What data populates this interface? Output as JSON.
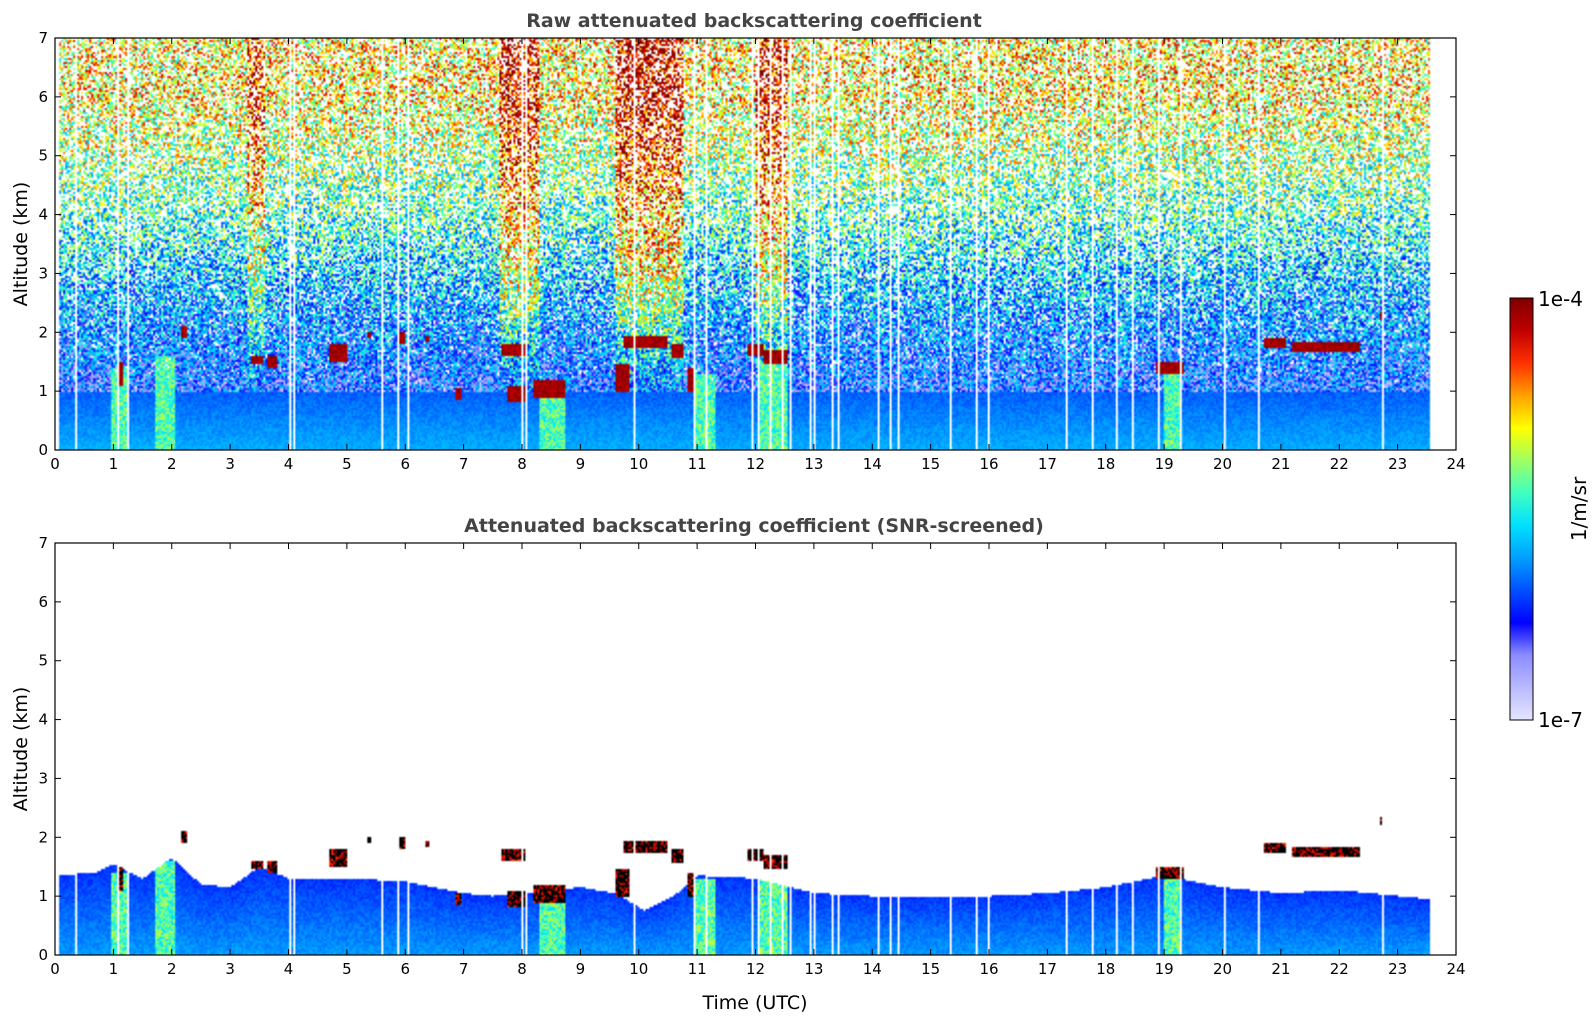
{
  "chart_data": [
    {
      "type": "heatmap",
      "title": "Raw attenuated backscattering coefficient",
      "xlabel": "",
      "ylabel": "Altitude (km)",
      "xlim": [
        0,
        24
      ],
      "ylim": [
        0,
        7
      ],
      "xticks": [
        "0",
        "1",
        "2",
        "3",
        "4",
        "5",
        "6",
        "7",
        "8",
        "9",
        "10",
        "11",
        "12",
        "13",
        "14",
        "15",
        "16",
        "17",
        "18",
        "19",
        "20",
        "21",
        "22",
        "23",
        "24"
      ],
      "yticks": [
        "0",
        "1",
        "2",
        "3",
        "4",
        "5",
        "6",
        "7"
      ],
      "data_time_range": [
        0,
        23.55
      ],
      "boundary_layer_top_km": 1.0,
      "noise_onset_km": 1.5,
      "cloud_layers": [
        {
          "t0": 1.05,
          "t1": 1.15,
          "z0": 1.1,
          "z1": 1.5
        },
        {
          "t0": 2.15,
          "t1": 2.25,
          "z0": 1.9,
          "z1": 2.1
        },
        {
          "t0": 3.35,
          "t1": 3.55,
          "z0": 1.45,
          "z1": 1.6
        },
        {
          "t0": 3.65,
          "t1": 3.8,
          "z0": 1.4,
          "z1": 1.6
        },
        {
          "t0": 4.7,
          "t1": 5.0,
          "z0": 1.5,
          "z1": 1.8
        },
        {
          "t0": 5.35,
          "t1": 5.42,
          "z0": 1.9,
          "z1": 2.0
        },
        {
          "t0": 5.9,
          "t1": 6.0,
          "z0": 1.8,
          "z1": 2.0
        },
        {
          "t0": 6.35,
          "t1": 6.42,
          "z0": 1.85,
          "z1": 1.95
        },
        {
          "t0": 6.85,
          "t1": 6.95,
          "z0": 0.85,
          "z1": 1.05
        },
        {
          "t0": 7.65,
          "t1": 8.1,
          "z0": 1.6,
          "z1": 1.8
        },
        {
          "t0": 7.75,
          "t1": 8.05,
          "z0": 0.8,
          "z1": 1.1
        },
        {
          "t0": 8.2,
          "t1": 8.75,
          "z0": 0.9,
          "z1": 1.2
        },
        {
          "t0": 9.6,
          "t1": 9.85,
          "z0": 1.0,
          "z1": 1.45
        },
        {
          "t0": 9.75,
          "t1": 10.5,
          "z0": 1.75,
          "z1": 1.95
        },
        {
          "t0": 10.55,
          "t1": 10.75,
          "z0": 1.55,
          "z1": 1.8
        },
        {
          "t0": 10.85,
          "t1": 10.95,
          "z0": 1.0,
          "z1": 1.4
        },
        {
          "t0": 11.85,
          "t1": 12.15,
          "z0": 1.6,
          "z1": 1.8
        },
        {
          "t0": 12.15,
          "t1": 12.55,
          "z0": 1.45,
          "z1": 1.7
        },
        {
          "t0": 18.85,
          "t1": 19.35,
          "z0": 1.3,
          "z1": 1.5
        },
        {
          "t0": 20.7,
          "t1": 21.1,
          "z0": 1.75,
          "z1": 1.9
        },
        {
          "t0": 21.2,
          "t1": 22.35,
          "z0": 1.65,
          "z1": 1.85
        },
        {
          "t0": 22.7,
          "t1": 22.78,
          "z0": 2.2,
          "z1": 2.35
        }
      ],
      "aerosol_plumes": [
        {
          "t0": 0.95,
          "t1": 1.25,
          "z0": 0.0,
          "z1": 1.4
        },
        {
          "t0": 1.7,
          "t1": 2.05,
          "z0": 0.0,
          "z1": 1.6
        },
        {
          "t0": 8.3,
          "t1": 8.75,
          "z0": 0.0,
          "z1": 1.1
        },
        {
          "t0": 10.95,
          "t1": 11.3,
          "z0": 0.0,
          "z1": 1.3
        },
        {
          "t0": 12.05,
          "t1": 12.55,
          "z0": 0.0,
          "z1": 1.5
        },
        {
          "t0": 19.0,
          "t1": 19.3,
          "z0": 0.0,
          "z1": 1.4
        }
      ],
      "noisy_columns": [
        {
          "t0": 7.6,
          "t1": 8.3,
          "level": 0.95
        },
        {
          "t0": 9.6,
          "t1": 10.75,
          "level": 1.0
        },
        {
          "t0": 12.0,
          "t1": 12.55,
          "level": 0.9
        },
        {
          "t0": 3.3,
          "t1": 3.6,
          "level": 0.75
        }
      ]
    },
    {
      "type": "heatmap",
      "title": "Attenuated backscattering coefficient (SNR-screened)",
      "xlabel": "Time (UTC)",
      "ylabel": "Altitude (km)",
      "xlim": [
        0,
        24
      ],
      "ylim": [
        0,
        7
      ],
      "xticks": [
        "0",
        "1",
        "2",
        "3",
        "4",
        "5",
        "6",
        "7",
        "8",
        "9",
        "10",
        "11",
        "12",
        "13",
        "14",
        "15",
        "16",
        "17",
        "18",
        "19",
        "20",
        "21",
        "22",
        "23",
        "24"
      ],
      "yticks": [
        "0",
        "1",
        "2",
        "3",
        "4",
        "5",
        "6",
        "7"
      ],
      "data_time_range": [
        0,
        23.55
      ],
      "screened_top_profile": [
        [
          0,
          1.35
        ],
        [
          0.7,
          1.4
        ],
        [
          1.0,
          1.55
        ],
        [
          1.5,
          1.3
        ],
        [
          2.0,
          1.65
        ],
        [
          2.5,
          1.2
        ],
        [
          3.0,
          1.15
        ],
        [
          3.5,
          1.5
        ],
        [
          4.0,
          1.3
        ],
        [
          5.0,
          1.3
        ],
        [
          6.0,
          1.25
        ],
        [
          7.0,
          1.05
        ],
        [
          7.5,
          1.0
        ],
        [
          8.0,
          1.05
        ],
        [
          9.0,
          1.15
        ],
        [
          9.6,
          1.05
        ],
        [
          10.1,
          0.75
        ],
        [
          10.6,
          1.0
        ],
        [
          11.0,
          1.35
        ],
        [
          12.0,
          1.3
        ],
        [
          13.0,
          1.05
        ],
        [
          14.0,
          1.0
        ],
        [
          15.0,
          1.0
        ],
        [
          16.0,
          1.0
        ],
        [
          17.0,
          1.05
        ],
        [
          18.0,
          1.15
        ],
        [
          19.0,
          1.35
        ],
        [
          20.0,
          1.15
        ],
        [
          21.0,
          1.05
        ],
        [
          22.0,
          1.1
        ],
        [
          23.55,
          0.95
        ]
      ]
    }
  ],
  "colorbar": {
    "max_label": "1e-4",
    "min_label": "1e-7",
    "unit_label": "1/m/sr",
    "colors": [
      "#e6e6ff",
      "#b9b9ff",
      "#8c8cff",
      "#0000ff",
      "#0050ff",
      "#00a0ff",
      "#00e0ff",
      "#40ffc0",
      "#a0ff60",
      "#ffff00",
      "#ffa000",
      "#ff3000",
      "#c00000",
      "#800000"
    ]
  }
}
